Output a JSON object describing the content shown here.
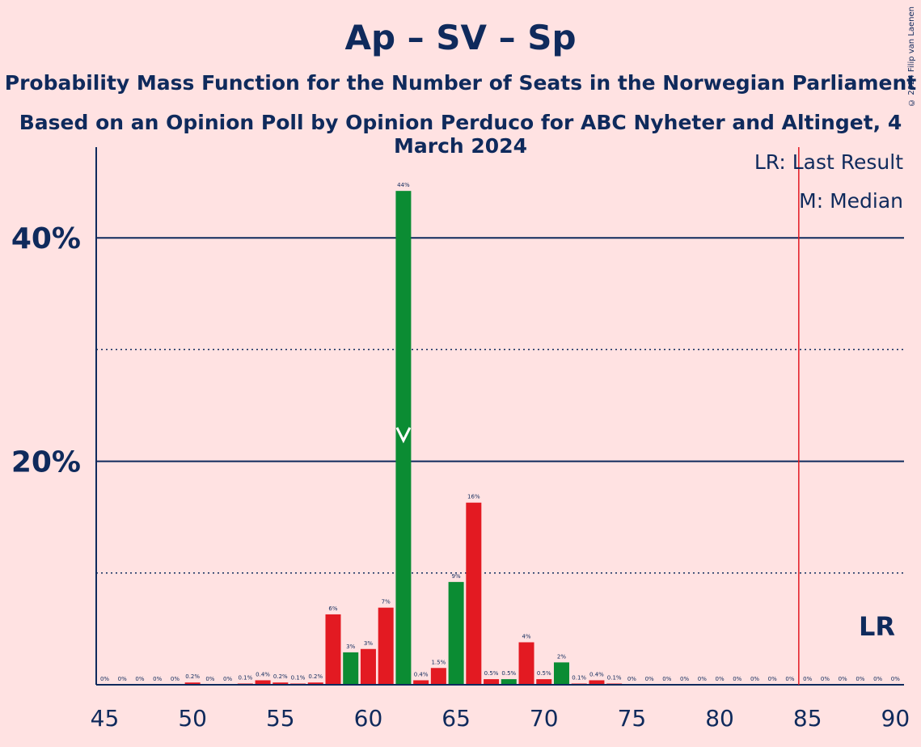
{
  "title": "Ap – SV – Sp",
  "subtitle": "Probability Mass Function for the Number of Seats in the Norwegian Parliament",
  "subtitle2": "Based on an Opinion Poll by Opinion Perduco for ABC Nyheter and Altinget, 4 March 2024",
  "copyright": "© 2024 Filip van Laenen",
  "legend": {
    "lr": "LR: Last Result",
    "m": "M: Median",
    "lr_marker": "LR"
  },
  "colors": {
    "background": "#ffe2e2",
    "axis": "#0f2a5c",
    "red": "#e31a22",
    "green": "#0b8c33",
    "last_result": "#e31a22"
  },
  "chart_data": {
    "type": "bar",
    "x": [
      45,
      46,
      47,
      48,
      49,
      50,
      51,
      52,
      53,
      54,
      55,
      56,
      57,
      58,
      59,
      60,
      61,
      62,
      63,
      64,
      65,
      66,
      67,
      68,
      69,
      70,
      71,
      72,
      73,
      74,
      75,
      76,
      77,
      78,
      79,
      80,
      81,
      82,
      83,
      84,
      85,
      86,
      87,
      88,
      89,
      90
    ],
    "values": [
      0,
      0,
      0,
      0,
      0,
      0.2,
      0,
      0,
      0.1,
      0.4,
      0.2,
      0.1,
      0.2,
      6.3,
      2.9,
      3.2,
      6.9,
      44.2,
      0.4,
      1.5,
      9.2,
      16.3,
      0.5,
      0.5,
      3.8,
      0.5,
      2.0,
      0.1,
      0.4,
      0.1,
      0,
      0,
      0,
      0,
      0,
      0,
      0,
      0,
      0,
      0,
      0,
      0,
      0,
      0,
      0,
      0
    ],
    "labels": [
      "0%",
      "0%",
      "0%",
      "0%",
      "0%",
      "0.2%",
      "0%",
      "0%",
      "0.1%",
      "0.4%",
      "0.2%",
      "0.1%",
      "0.2%",
      "6%",
      "3%",
      "3%",
      "7%",
      "44%",
      "0.4%",
      "1.5%",
      "9%",
      "16%",
      "0.5%",
      "0.5%",
      "4%",
      "0.5%",
      "2%",
      "0.1%",
      "0.4%",
      "0.1%",
      "0%",
      "0%",
      "0%",
      "0%",
      "0%",
      "0%",
      "0%",
      "0%",
      "0%",
      "0%",
      "0%",
      "0%",
      "0%",
      "0%",
      "0%",
      "0%"
    ],
    "x_ticks": [
      "45",
      "50",
      "55",
      "60",
      "65",
      "70",
      "75",
      "80",
      "85",
      "90"
    ],
    "y_ticks": [
      "20%",
      "40%"
    ],
    "xlim": [
      45,
      90
    ],
    "ylim": [
      0,
      48
    ],
    "dotted_gridlines": [
      10,
      30
    ],
    "solid_gridlines": [
      20,
      40
    ],
    "median": 62,
    "last_result": 84.5,
    "green_seats": [
      59,
      62,
      65,
      68,
      71
    ]
  }
}
